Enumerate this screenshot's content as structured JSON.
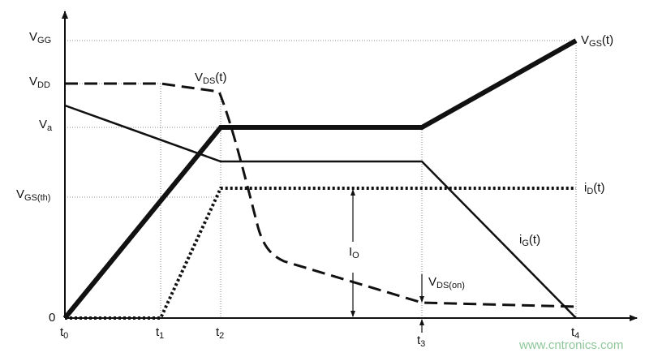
{
  "axes_labels": {
    "y": [
      {
        "main": "V",
        "sub": "GG"
      },
      {
        "main": "V",
        "sub": "DD"
      },
      {
        "main": "V",
        "sub": "a"
      },
      {
        "main": "V",
        "sub": "GS(th)"
      },
      {
        "main": "0"
      }
    ],
    "x": [
      {
        "main": "t",
        "sub": "0"
      },
      {
        "main": "t",
        "sub": "1"
      },
      {
        "main": "t",
        "sub": "2"
      },
      {
        "main": "t",
        "sub": "3"
      },
      {
        "main": "t",
        "sub": "4"
      }
    ]
  },
  "curves": [
    {
      "main": "V",
      "sub": "GS",
      "tail": "(t)"
    },
    {
      "main": "V",
      "sub": "DS",
      "tail": "(t)"
    },
    {
      "main": "i",
      "sub": "D",
      "tail": "(t)"
    },
    {
      "main": "i",
      "sub": "G",
      "tail": "(t)"
    }
  ],
  "annotations": [
    {
      "main": "I",
      "sub": "O"
    },
    {
      "main": "V",
      "sub": "DS(on)"
    }
  ],
  "watermark": "www.cntronics.com"
}
